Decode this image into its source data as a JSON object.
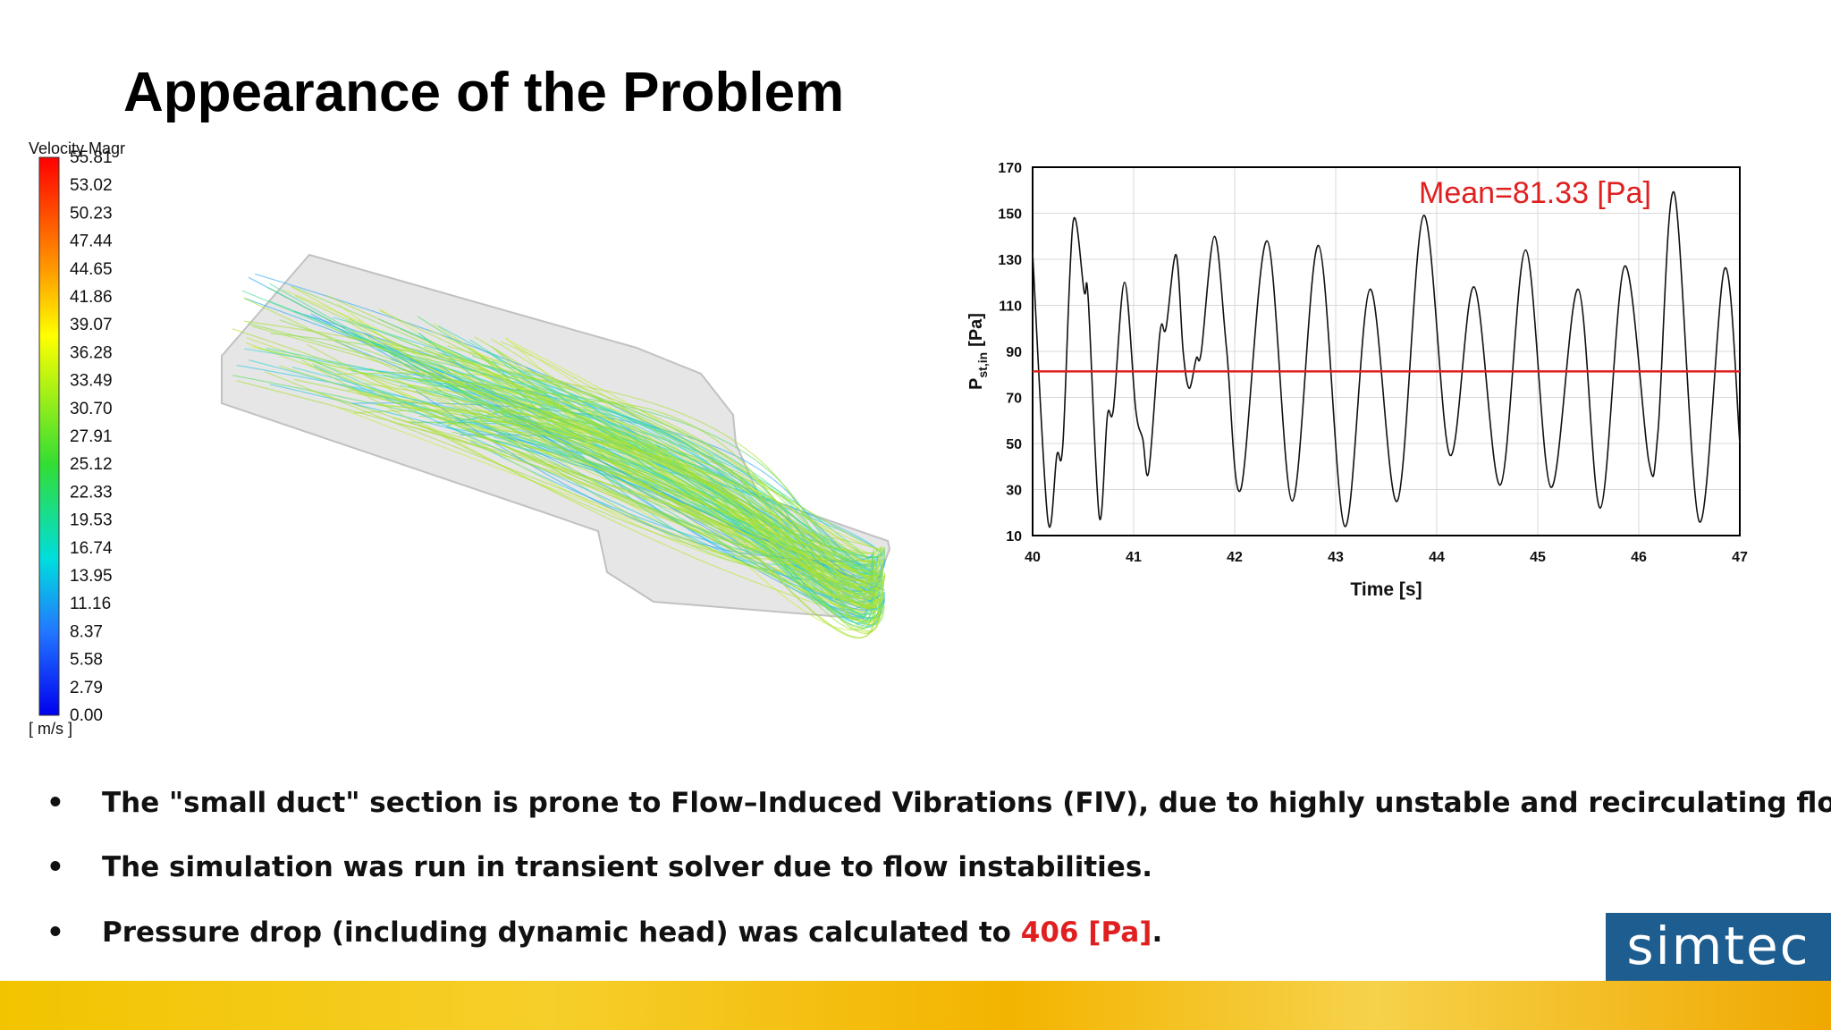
{
  "title": "Appearance of the Problem",
  "colorbar": {
    "title": "Velocity Magr",
    "labels": [
      "55.81",
      "53.02",
      "50.23",
      "47.44",
      "44.65",
      "41.86",
      "39.07",
      "36.28",
      "33.49",
      "30.70",
      "27.91",
      "25.12",
      "22.33",
      "19.53",
      "16.74",
      "13.95",
      "11.16",
      "8.37",
      "5.58",
      "2.79",
      "0.00"
    ],
    "unit": "[ m/s ]"
  },
  "chart_data": {
    "type": "line",
    "xlabel": "Time [s]",
    "ylabel": {
      "main": "P",
      "sub": "st,in",
      "unit": "[Pa]"
    },
    "annotation": "Mean=81.33 [Pa]",
    "hline": {
      "value": 81.33,
      "color": "#e02020"
    },
    "x": [
      40.0,
      40.15,
      40.24,
      40.3,
      40.4,
      40.51,
      40.55,
      40.66,
      40.74,
      40.8,
      40.91,
      41.02,
      41.09,
      41.15,
      41.26,
      41.32,
      41.42,
      41.49,
      41.55,
      41.62,
      41.67,
      41.8,
      41.92,
      42.06,
      42.32,
      42.57,
      42.83,
      43.09,
      43.34,
      43.61,
      43.87,
      44.13,
      44.37,
      44.63,
      44.88,
      45.13,
      45.4,
      45.62,
      45.86,
      46.1,
      46.19,
      46.35,
      46.6,
      46.85,
      47.0
    ],
    "series": [
      {
        "name": "Pst,in",
        "color": "#111111",
        "values": [
          133,
          17,
          45,
          50,
          146,
          116,
          113,
          18,
          62,
          65,
          120,
          65,
          52,
          38,
          98,
          100,
          132,
          90,
          74,
          87,
          90,
          140,
          91,
          30,
          138,
          25,
          136,
          14,
          117,
          25,
          149,
          45,
          118,
          32,
          134,
          31,
          117,
          22,
          127,
          42,
          55,
          159,
          16,
          126,
          50
        ]
      }
    ],
    "xlim": [
      40,
      47
    ],
    "ylim": [
      10,
      170
    ],
    "xticks": [
      40,
      41,
      42,
      43,
      44,
      45,
      46,
      47
    ],
    "yticks": [
      10,
      30,
      50,
      70,
      90,
      110,
      130,
      150,
      170
    ],
    "grid": true
  },
  "bullets": [
    {
      "text": "The \"small duct\" section is prone to Flow–Induced Vibrations (FIV), due to highly unstable and recirculating flow."
    },
    {
      "text": "The simulation was run in transient solver due to flow instabilities."
    },
    {
      "text": "Pressure drop (including dynamic head) was calculated to ",
      "highlight": "406 [Pa]",
      "end": "."
    }
  ],
  "logo": "simtec"
}
